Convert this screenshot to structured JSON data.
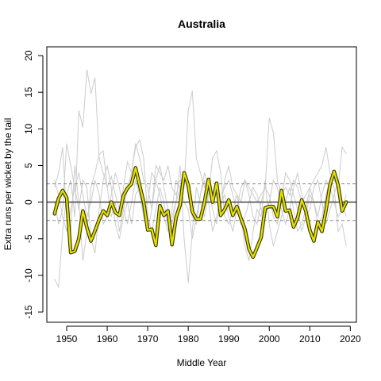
{
  "chart_data": {
    "type": "line",
    "title": "Australia",
    "xlabel": "Middle Year",
    "ylabel": "Extra runs per wicket by the tail",
    "xlim": [
      1945.1,
      2021.5
    ],
    "ylim": [
      -16.4,
      21.2
    ],
    "xticks": [
      1950,
      1960,
      1970,
      1980,
      1990,
      2000,
      2010,
      2020
    ],
    "yticks": [
      -15,
      -10,
      -5,
      0,
      5,
      10,
      15,
      20
    ],
    "reference_lines": {
      "zero": 0,
      "dashed": [
        2.5,
        -2.5
      ]
    },
    "colors": {
      "main_line": "#e5e000",
      "main_outline": "#3a3a00",
      "background_lines": "#cccccc",
      "reference_line": "#444444",
      "dashed_line": "#888888"
    },
    "series": [
      {
        "x": [
          1947,
          1948,
          1949,
          1950,
          1951,
          1952,
          1953,
          1954,
          1955,
          1956,
          1957,
          1958,
          1959,
          1960,
          1961,
          1962,
          1963,
          1964,
          1965,
          1966,
          1967,
          1968,
          1969,
          1970,
          1971,
          1972,
          1973,
          1974,
          1975,
          1976,
          1977,
          1978,
          1979,
          1980,
          1981,
          1982,
          1983,
          1984,
          1985,
          1986,
          1987,
          1988,
          1989,
          1990,
          1991,
          1992,
          1993,
          1994,
          1995,
          1996,
          1997,
          1998,
          1999,
          2000,
          2001,
          2002,
          2003,
          2004,
          2005,
          2006,
          2007,
          2008,
          2009,
          2010,
          2011,
          2012,
          2013,
          2014,
          2015,
          2016,
          2017,
          2018,
          2019
        ],
        "values": [
          -1.6,
          0.5,
          1.6,
          0.6,
          -6.9,
          -6.7,
          -5.0,
          -1.2,
          -3.5,
          -5.3,
          -3.9,
          -2.4,
          -1.2,
          -1.8,
          0.0,
          -1.4,
          -1.8,
          0.9,
          1.9,
          2.5,
          4.7,
          2.3,
          0.0,
          -3.8,
          -3.7,
          -5.9,
          -0.5,
          -1.8,
          -1.2,
          -5.8,
          -2.1,
          -0.4,
          4.0,
          2.3,
          -1.3,
          -2.3,
          -2.3,
          0.0,
          3.1,
          0.0,
          2.6,
          -1.8,
          -1.0,
          0.3,
          -1.8,
          -0.6,
          -2.2,
          -3.7,
          -6.4,
          -7.5,
          -6.2,
          -4.8,
          -0.8,
          -0.6,
          -0.6,
          -2.0,
          1.6,
          -1.2,
          -1.1,
          -3.4,
          -2.1,
          0.3,
          -1.2,
          -3.8,
          -5.3,
          -2.7,
          -4.0,
          -1.1,
          2.4,
          4.2,
          2.3,
          -1.2,
          0.0
        ]
      }
    ]
  },
  "background_series": [
    [
      -10.5,
      -11.6,
      -4.0,
      1.0,
      3.0,
      -2.0,
      12.5,
      10.2,
      18.1,
      14.8,
      17.0,
      6.0,
      4.0,
      2.0,
      3.5,
      1.0,
      -1.0,
      2.0,
      5.5,
      4.0,
      8.0,
      6.0,
      3.0,
      2.0,
      -1.0,
      5.0,
      4.0,
      3.0,
      5.0,
      2.0,
      1.0,
      3.0,
      2.0,
      12.5,
      15.2,
      6.0,
      4.0,
      2.0,
      3.0,
      0.0,
      2.0,
      -1.0,
      3.0,
      5.0,
      2.0,
      1.0,
      0.0,
      3.0,
      2.0,
      1.0,
      0.0,
      1.0,
      2.0,
      11.5,
      9.5,
      3.0,
      1.0,
      2.0,
      1.0,
      3.0,
      2.0,
      0.0,
      1.0,
      2.0,
      3.0,
      4.0,
      5.0,
      7.5,
      4.0,
      3.0,
      2.0,
      7.5,
      6.6
    ],
    [
      2.0,
      4.0,
      7.5,
      -2.0,
      -4.0,
      5.0,
      0.0,
      -8.0,
      -4.0,
      2.0,
      4.0,
      6.5,
      7.0,
      2.0,
      -2.0,
      0.0,
      -4.0,
      -1.0,
      2.0,
      4.0,
      7.5,
      8.5,
      6.0,
      -2.0,
      -4.0,
      -1.0,
      2.0,
      0.0,
      -3.0,
      -2.0,
      0.0,
      5.0,
      -5.0,
      -11.0,
      -4.0,
      2.0,
      0.0,
      -2.0,
      1.0,
      6.0,
      7.0,
      4.0,
      -2.0,
      -3.0,
      -1.0,
      1.0,
      -2.0,
      -6.0,
      -8.0,
      -4.0,
      -1.0,
      -2.0,
      3.0,
      -3.0,
      -6.0,
      -4.0,
      -2.0,
      0.0,
      2.0,
      -1.0,
      -4.0,
      -3.0,
      -1.0,
      2.0,
      0.0,
      -3.0,
      -2.0,
      1.0,
      3.0,
      2.0,
      -4.0,
      -3.0,
      -6.0
    ],
    [
      0.0,
      -3.0,
      -1.0,
      8.0,
      5.0,
      2.0,
      -1.0,
      3.0,
      2.0,
      -5.0,
      -7.0,
      -1.0,
      3.0,
      5.0,
      2.0,
      -3.0,
      -5.0,
      -2.0,
      0.0,
      -3.0,
      1.0,
      2.0,
      -2.0,
      0.0,
      4.0,
      3.0,
      1.0,
      -2.0,
      -4.0,
      -1.0,
      3.0,
      2.0,
      0.0,
      -1.0,
      -5.0,
      -2.0,
      1.0,
      4.0,
      2.0,
      -1.0,
      -3.0,
      0.0,
      1.0,
      -2.0,
      -4.0,
      -1.0,
      2.0,
      3.0,
      1.0,
      -2.0,
      -3.0,
      0.0,
      2.0,
      1.0,
      -2.0,
      -3.0,
      0.0,
      4.0,
      3.0,
      1.0,
      -1.0,
      -4.0,
      -2.0,
      1.0,
      0.0,
      -2.0,
      1.0,
      3.0,
      2.0,
      0.0,
      -2.0,
      -1.0,
      1.0
    ],
    [
      3.0,
      1.0,
      -2.0,
      -4.0,
      -1.0,
      2.0,
      4.0,
      1.0,
      -2.0,
      0.0,
      3.0,
      1.0,
      -3.0,
      -2.0,
      1.0,
      4.0,
      2.0,
      -1.0,
      -3.0,
      0.0,
      3.0,
      1.0,
      -2.0,
      -4.0,
      -1.0,
      3.0,
      5.0,
      2.0,
      -1.0,
      -3.0,
      0.0,
      2.0,
      4.0,
      1.0,
      -2.0,
      -3.0,
      1.0,
      3.0,
      0.0,
      -4.0,
      -2.0,
      1.0,
      2.0,
      3.0,
      1.0,
      -1.0,
      -3.0,
      -2.0,
      0.0,
      2.0,
      1.0,
      -1.0,
      -2.0,
      0.0,
      3.0,
      2.0,
      -1.0,
      -3.0,
      -1.0,
      2.0,
      4.0,
      1.0,
      -2.0,
      -1.0,
      2.0,
      3.0,
      0.0,
      -3.0,
      -1.0,
      1.0,
      3.0,
      0.0,
      -2.0
    ]
  ]
}
